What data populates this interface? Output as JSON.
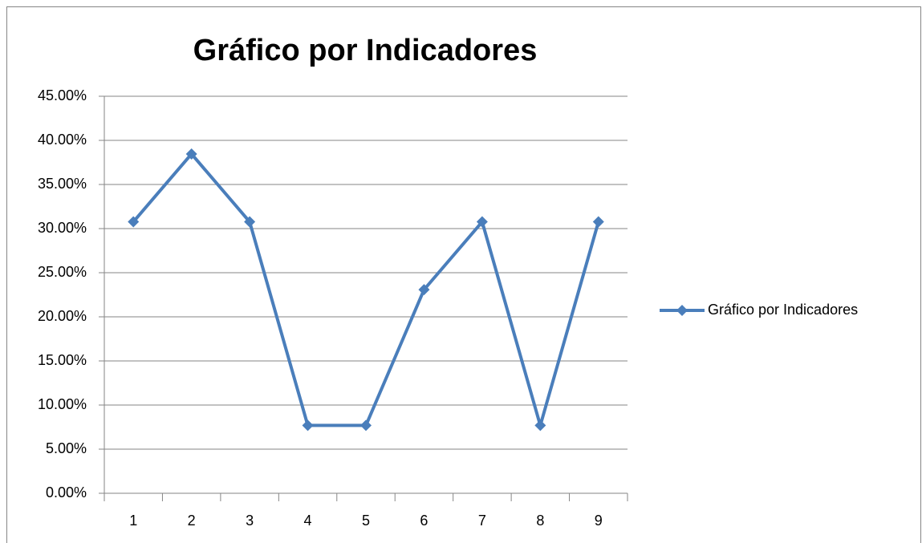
{
  "chart_data": {
    "type": "line",
    "title": "Gráfico por Indicadores",
    "categories": [
      "1",
      "2",
      "3",
      "4",
      "5",
      "6",
      "7",
      "8",
      "9"
    ],
    "series": [
      {
        "name": "Gráfico por Indicadores",
        "color": "#4a7ebb",
        "values": [
          30.77,
          38.46,
          30.77,
          7.69,
          7.69,
          23.08,
          30.77,
          7.69,
          30.77
        ]
      }
    ],
    "ylim": [
      0,
      45
    ],
    "yticks": [
      {
        "value": 0,
        "label": "0.00%"
      },
      {
        "value": 5,
        "label": "5.00%"
      },
      {
        "value": 10,
        "label": "10.00%"
      },
      {
        "value": 15,
        "label": "15.00%"
      },
      {
        "value": 20,
        "label": "20.00%"
      },
      {
        "value": 25,
        "label": "25.00%"
      },
      {
        "value": 30,
        "label": "30.00%"
      },
      {
        "value": 35,
        "label": "35.00%"
      },
      {
        "value": 40,
        "label": "40.00%"
      },
      {
        "value": 45,
        "label": "45.00%"
      }
    ],
    "grid": true,
    "legend": "right"
  }
}
